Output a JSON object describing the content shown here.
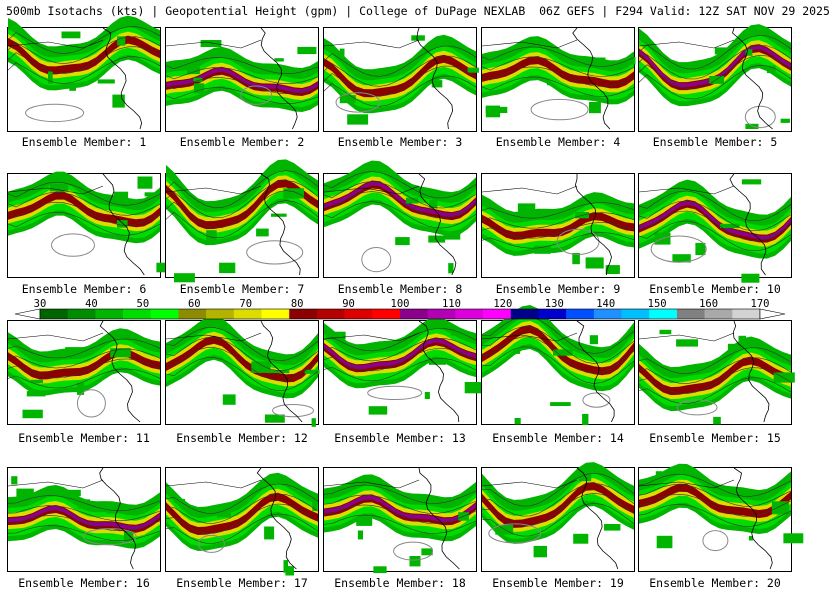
{
  "header": "500mb Isotachs (kts) | Geopotential Height (gpm) | College of DuPage NEXLAB  06Z GEFS | F294 Valid: 12Z SAT NOV 29 2025",
  "member_label_prefix": "Ensemble Member:",
  "members": [
    {
      "id": 1,
      "label": "Ensemble Member: 1"
    },
    {
      "id": 2,
      "label": "Ensemble Member: 2"
    },
    {
      "id": 3,
      "label": "Ensemble Member: 3"
    },
    {
      "id": 4,
      "label": "Ensemble Member: 4"
    },
    {
      "id": 5,
      "label": "Ensemble Member: 5"
    },
    {
      "id": 6,
      "label": "Ensemble Member: 6"
    },
    {
      "id": 7,
      "label": "Ensemble Member: 7"
    },
    {
      "id": 8,
      "label": "Ensemble Member: 8"
    },
    {
      "id": 9,
      "label": "Ensemble Member: 9"
    },
    {
      "id": 10,
      "label": "Ensemble Member: 10"
    },
    {
      "id": 11,
      "label": "Ensemble Member: 11"
    },
    {
      "id": 12,
      "label": "Ensemble Member: 12"
    },
    {
      "id": 13,
      "label": "Ensemble Member: 13"
    },
    {
      "id": 14,
      "label": "Ensemble Member: 14"
    },
    {
      "id": 15,
      "label": "Ensemble Member: 15"
    },
    {
      "id": 16,
      "label": "Ensemble Member: 16"
    },
    {
      "id": 17,
      "label": "Ensemble Member: 17"
    },
    {
      "id": 18,
      "label": "Ensemble Member: 18"
    },
    {
      "id": 19,
      "label": "Ensemble Member: 19"
    },
    {
      "id": 20,
      "label": "Ensemble Member: 20"
    }
  ],
  "colorbar": {
    "ticks": [
      "30",
      "40",
      "50",
      "60",
      "70",
      "80",
      "90",
      "100",
      "110",
      "120",
      "130",
      "140",
      "150",
      "160",
      "170"
    ],
    "colors": [
      "#006400",
      "#008c00",
      "#00b400",
      "#00dc00",
      "#00ff00",
      "#8c8c00",
      "#b4b400",
      "#dcdc00",
      "#ffff00",
      "#8b0000",
      "#b40000",
      "#dc0000",
      "#ff0000",
      "#8b008b",
      "#b400b4",
      "#dc00dc",
      "#ff00ff",
      "#00008b",
      "#0000cd",
      "#0050ff",
      "#1e90ff",
      "#00bfff",
      "#00ffff",
      "#808080",
      "#a9a9a9",
      "#d3d3d3"
    ]
  }
}
